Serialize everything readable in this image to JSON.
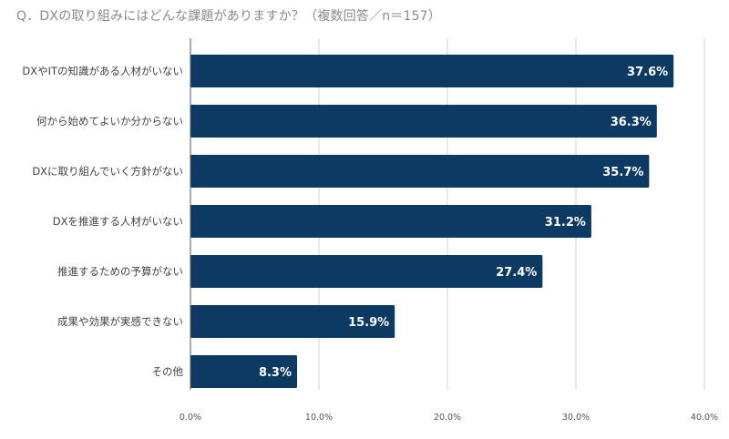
{
  "chart_data": {
    "type": "bar",
    "orientation": "horizontal",
    "title": "Q．DXの取り組みにはどんな課題がありますか？（複数回答／n＝157）",
    "categories": [
      "DXやITの知識がある人材がいない",
      "何から始めてよいか分からない",
      "DXに取り組んでいく方針がない",
      "DXを推進する人材がいない",
      "推進するための予算がない",
      "成果や効果が実感できない",
      "その他"
    ],
    "values": [
      37.6,
      36.3,
      35.7,
      31.2,
      27.4,
      15.9,
      8.3
    ],
    "value_labels": [
      "37.6%",
      "36.3%",
      "35.7%",
      "31.2%",
      "27.4%",
      "15.9%",
      "8.3%"
    ],
    "xlim": [
      0,
      40
    ],
    "xticks": [
      0,
      10,
      20,
      30,
      40
    ],
    "xtick_labels": [
      "0.0%",
      "10.0%",
      "20.0%",
      "30.0%",
      "40.0%"
    ],
    "xlabel": "",
    "ylabel": "",
    "grid": "vertical",
    "bar_color": "#0d3a63"
  }
}
